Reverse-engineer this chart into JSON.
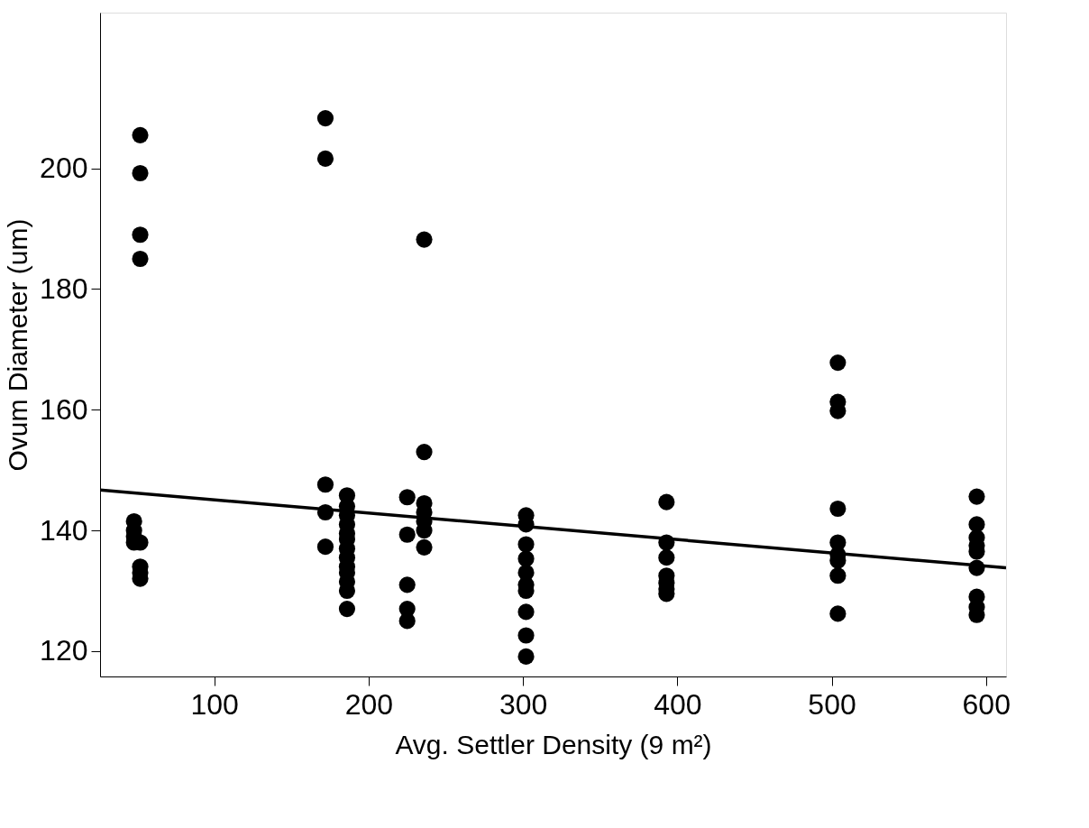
{
  "chart_data": {
    "type": "scatter",
    "xlabel": "Avg. Settler Density  (9 m²)",
    "ylabel": "Ovum Diameter (um)",
    "xlim": [
      26,
      613
    ],
    "ylim": [
      115.8,
      225.8
    ],
    "xticks": [
      100,
      200,
      300,
      400,
      500,
      600
    ],
    "yticks": [
      120,
      140,
      160,
      180,
      200
    ],
    "marker": "circle",
    "series": [
      {
        "color": "#000000",
        "x": [
          52,
          52,
          52,
          52,
          48,
          48,
          48,
          48,
          52,
          52,
          52,
          52,
          172,
          172,
          172,
          172,
          172,
          186,
          186,
          186,
          186,
          186,
          186,
          186,
          186,
          186,
          186,
          186,
          186,
          186,
          225,
          225,
          225,
          225,
          225,
          236,
          236,
          236,
          236,
          236,
          236,
          236,
          302,
          302,
          302,
          302,
          302,
          302,
          302,
          302,
          302,
          302,
          393,
          393,
          393,
          393,
          393,
          393,
          393,
          504,
          504,
          504,
          504,
          504,
          504,
          504,
          504,
          504,
          594,
          594,
          594,
          594,
          594,
          594,
          594,
          594,
          594
        ],
        "values": [
          205.5,
          199.2,
          189,
          185,
          141.5,
          140,
          139,
          138,
          138,
          134,
          133,
          132,
          208.3,
          201.6,
          147.6,
          143,
          137.3,
          145.8,
          144,
          142.5,
          141,
          139.5,
          138.5,
          137,
          135.5,
          134,
          133,
          131.5,
          130,
          127,
          145.5,
          139.3,
          131,
          127,
          125,
          188.2,
          153,
          144.5,
          143,
          141.5,
          140,
          137.2,
          142.5,
          141,
          137.7,
          135.3,
          133,
          131,
          130,
          126.5,
          122.6,
          119.1,
          144.7,
          138,
          135.5,
          132.5,
          131.3,
          130.3,
          129.5,
          167.8,
          161.3,
          159.8,
          143.6,
          138,
          136,
          135,
          132.5,
          126.2,
          145.6,
          141,
          138.8,
          137.5,
          136.5,
          133.8,
          129,
          127.3,
          126
        ]
      },
      {
        "type": "line",
        "color": "#000000",
        "line_style": "solid",
        "marker": "none",
        "x": [
          26,
          613
        ],
        "values": [
          146.7,
          133.8
        ]
      }
    ]
  }
}
